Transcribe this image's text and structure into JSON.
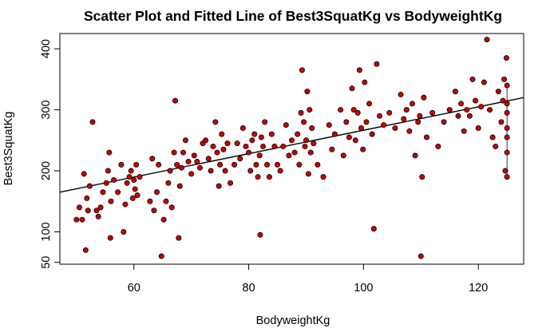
{
  "chart_data": {
    "type": "scatter",
    "title": "Scatter Plot and Fitted Line of Best3SquatKg vs BodyweightKg",
    "xlabel": "BodyweightKg",
    "ylabel": "Best3SquatKg",
    "xlim": [
      47.1,
      127.9
    ],
    "ylim": [
      47.0,
      425.0
    ],
    "xticks": [
      60,
      80,
      100,
      120
    ],
    "yticks": [
      50,
      100,
      200,
      300,
      400
    ],
    "grid": false,
    "legend": false,
    "colors": {
      "point_fill": "#cc0000",
      "point_stroke": "#000000",
      "line": "#000000"
    },
    "fitted_line": {
      "x": [
        47.1,
        127.9
      ],
      "y": [
        165,
        320
      ]
    },
    "points": [
      [
        50.0,
        120
      ],
      [
        50.5,
        140
      ],
      [
        51.0,
        120
      ],
      [
        51.3,
        195
      ],
      [
        51.6,
        70
      ],
      [
        51.8,
        155
      ],
      [
        52.0,
        135
      ],
      [
        52.3,
        175
      ],
      [
        52.8,
        280
      ],
      [
        53.5,
        135
      ],
      [
        53.8,
        125
      ],
      [
        54.2,
        140
      ],
      [
        54.6,
        165
      ],
      [
        55.2,
        180
      ],
      [
        55.5,
        200
      ],
      [
        55.7,
        230
      ],
      [
        55.9,
        90
      ],
      [
        56.0,
        150
      ],
      [
        56.5,
        185
      ],
      [
        57.2,
        165
      ],
      [
        57.8,
        210
      ],
      [
        58.2,
        100
      ],
      [
        58.5,
        145
      ],
      [
        58.8,
        180
      ],
      [
        59.2,
        190
      ],
      [
        59.5,
        200
      ],
      [
        59.8,
        155
      ],
      [
        60.0,
        185
      ],
      [
        60.2,
        170
      ],
      [
        60.4,
        210
      ],
      [
        60.6,
        160
      ],
      [
        61.0,
        190
      ],
      [
        62.8,
        150
      ],
      [
        63.2,
        220
      ],
      [
        63.5,
        135
      ],
      [
        64.0,
        165
      ],
      [
        64.3,
        210
      ],
      [
        64.8,
        60
      ],
      [
        65.2,
        120
      ],
      [
        65.6,
        150
      ],
      [
        66.0,
        180
      ],
      [
        66.3,
        200
      ],
      [
        66.6,
        140
      ],
      [
        67.0,
        230
      ],
      [
        67.2,
        315
      ],
      [
        67.5,
        210
      ],
      [
        67.8,
        90
      ],
      [
        68.0,
        175
      ],
      [
        68.3,
        205
      ],
      [
        68.6,
        230
      ],
      [
        69.0,
        250
      ],
      [
        69.5,
        215
      ],
      [
        70.0,
        195
      ],
      [
        70.5,
        225
      ],
      [
        71.0,
        215
      ],
      [
        71.5,
        205
      ],
      [
        72.0,
        245
      ],
      [
        72.5,
        250
      ],
      [
        73.0,
        220
      ],
      [
        73.4,
        200
      ],
      [
        73.8,
        240
      ],
      [
        74.2,
        280
      ],
      [
        74.5,
        230
      ],
      [
        74.8,
        175
      ],
      [
        75.0,
        210
      ],
      [
        75.3,
        260
      ],
      [
        75.6,
        235
      ],
      [
        75.9,
        200
      ],
      [
        76.3,
        245
      ],
      [
        76.8,
        180
      ],
      [
        77.5,
        210
      ],
      [
        78.0,
        245
      ],
      [
        78.5,
        220
      ],
      [
        79.0,
        270
      ],
      [
        79.5,
        240
      ],
      [
        80.0,
        230
      ],
      [
        80.3,
        200
      ],
      [
        80.6,
        250
      ],
      [
        81.0,
        260
      ],
      [
        81.3,
        210
      ],
      [
        81.6,
        190
      ],
      [
        81.9,
        225
      ],
      [
        82.0,
        95
      ],
      [
        82.2,
        255
      ],
      [
        82.5,
        240
      ],
      [
        82.8,
        280
      ],
      [
        83.2,
        210
      ],
      [
        83.6,
        190
      ],
      [
        84.0,
        260
      ],
      [
        84.5,
        240
      ],
      [
        85.0,
        210
      ],
      [
        85.5,
        200
      ],
      [
        86.0,
        240
      ],
      [
        86.5,
        275
      ],
      [
        87.0,
        225
      ],
      [
        87.5,
        250
      ],
      [
        88.0,
        230
      ],
      [
        88.5,
        260
      ],
      [
        88.8,
        210
      ],
      [
        89.1,
        295
      ],
      [
        89.3,
        365
      ],
      [
        89.6,
        280
      ],
      [
        89.8,
        240
      ],
      [
        90.0,
        250
      ],
      [
        90.2,
        330
      ],
      [
        90.4,
        195
      ],
      [
        90.6,
        300
      ],
      [
        90.8,
        230
      ],
      [
        91.0,
        270
      ],
      [
        91.3,
        245
      ],
      [
        92.0,
        210
      ],
      [
        93.0,
        190
      ],
      [
        94.0,
        275
      ],
      [
        94.5,
        235
      ],
      [
        95.0,
        260
      ],
      [
        96.0,
        300
      ],
      [
        96.5,
        225
      ],
      [
        97.0,
        280
      ],
      [
        97.5,
        255
      ],
      [
        98.0,
        335
      ],
      [
        98.3,
        300
      ],
      [
        98.6,
        250
      ],
      [
        99.0,
        295
      ],
      [
        99.3,
        365
      ],
      [
        99.6,
        270
      ],
      [
        99.9,
        235
      ],
      [
        100.2,
        345
      ],
      [
        100.5,
        280
      ],
      [
        101.0,
        310
      ],
      [
        101.5,
        260
      ],
      [
        101.8,
        105
      ],
      [
        102.3,
        375
      ],
      [
        102.8,
        290
      ],
      [
        103.5,
        275
      ],
      [
        104.5,
        295
      ],
      [
        105.5,
        270
      ],
      [
        106.5,
        325
      ],
      [
        107.0,
        285
      ],
      [
        107.5,
        300
      ],
      [
        108.0,
        265
      ],
      [
        108.5,
        310
      ],
      [
        109.0,
        225
      ],
      [
        109.5,
        280
      ],
      [
        109.8,
        290
      ],
      [
        110.0,
        60
      ],
      [
        110.2,
        190
      ],
      [
        110.5,
        320
      ],
      [
        111.0,
        255
      ],
      [
        112.0,
        295
      ],
      [
        113.0,
        240
      ],
      [
        114.0,
        280
      ],
      [
        115.0,
        300
      ],
      [
        116.0,
        330
      ],
      [
        116.5,
        290
      ],
      [
        117.0,
        310
      ],
      [
        117.5,
        265
      ],
      [
        118.0,
        300
      ],
      [
        118.5,
        290
      ],
      [
        119.0,
        350
      ],
      [
        119.5,
        315
      ],
      [
        120.0,
        270
      ],
      [
        120.5,
        305
      ],
      [
        121.0,
        345
      ],
      [
        121.5,
        415
      ],
      [
        122.0,
        300
      ],
      [
        122.5,
        255
      ],
      [
        123.0,
        240
      ],
      [
        123.5,
        330
      ],
      [
        124.0,
        280
      ],
      [
        124.3,
        315
      ],
      [
        124.5,
        350
      ],
      [
        124.7,
        200
      ],
      [
        124.9,
        385
      ],
      [
        125.0,
        190
      ],
      [
        125.0,
        310
      ],
      [
        125.0,
        230
      ],
      [
        125.0,
        270
      ],
      [
        125.0,
        340
      ],
      [
        125.0,
        255
      ],
      [
        125.0,
        295
      ]
    ]
  }
}
